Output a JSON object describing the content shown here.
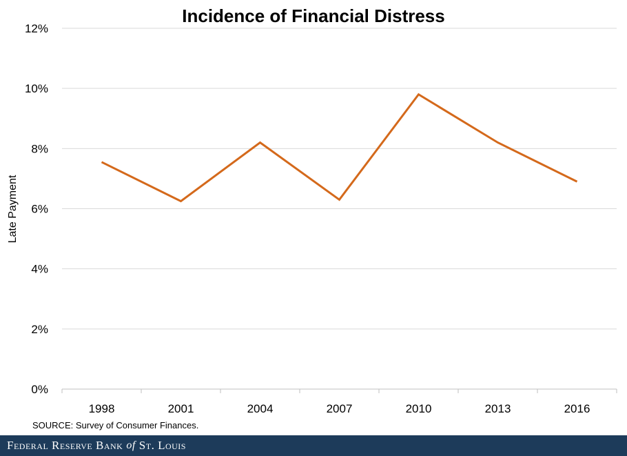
{
  "chart_data": {
    "type": "line",
    "title": "Incidence of Financial Distress",
    "ylabel": "Late Payment",
    "xlabel": "",
    "categories": [
      "1998",
      "2001",
      "2004",
      "2007",
      "2010",
      "2013",
      "2016"
    ],
    "series": [
      {
        "values": [
          7.55,
          6.25,
          8.2,
          6.3,
          9.8,
          8.2,
          6.9
        ]
      }
    ],
    "ylim": [
      0,
      12
    ],
    "yticks": [
      0,
      2,
      4,
      6,
      8,
      10,
      12
    ],
    "ytick_labels": [
      "0%",
      "2%",
      "4%",
      "6%",
      "8%",
      "10%",
      "12%"
    ],
    "grid": true,
    "legend": "none"
  },
  "source": "SOURCE: Survey of Consumer Finances.",
  "footer": {
    "part1": "Federal Reserve Bank",
    "part2": "of",
    "part3": "St. Louis"
  },
  "colors": {
    "line": "#D4691B",
    "grid": "#D9D9D9",
    "axis": "#BFBFBF",
    "footer_bg": "#1D3B5A"
  }
}
